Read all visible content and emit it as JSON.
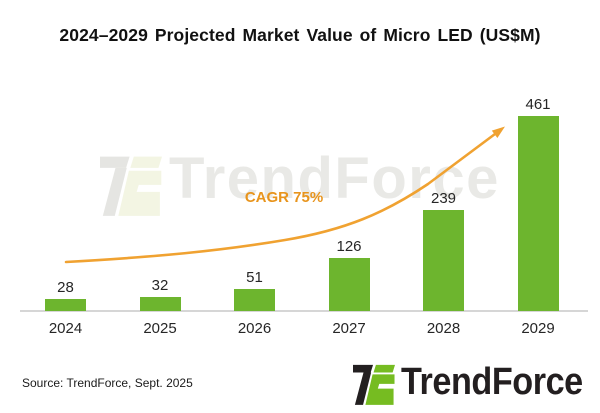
{
  "title": "2024–2029 Projected Market Value of Micro LED (US$M)",
  "annotation": {
    "cagr_label": "CAGR 75%"
  },
  "watermark": {
    "text": "TrendForce"
  },
  "footer": {
    "source": "Source: TrendForce, Sept. 2025",
    "logo_text": "TrendForce"
  },
  "colors": {
    "bar": "#6DB52E",
    "curve": "#F0A231",
    "accent_orange": "#E8941C",
    "axis": "#D6D6D6",
    "logo_dark": "#231F20",
    "logo_green": "#76BC21",
    "watermark_dark": "#E5E5E2",
    "watermark_green": "#F3F5E3",
    "watermark_text": "#E9E9E6",
    "label_text": "#262626"
  },
  "chart_data": {
    "type": "bar",
    "categories": [
      "2024",
      "2025",
      "2026",
      "2027",
      "2028",
      "2029"
    ],
    "values": [
      28,
      32,
      51,
      126,
      239,
      461
    ],
    "title": "2024–2029 Projected Market Value of Micro LED (US$M)",
    "xlabel": "",
    "ylabel": "",
    "unit": "US$M",
    "ylim": [
      0,
      480
    ],
    "grid": false,
    "legend": false,
    "data_labels": true,
    "annotations": [
      "CAGR 75%"
    ]
  }
}
